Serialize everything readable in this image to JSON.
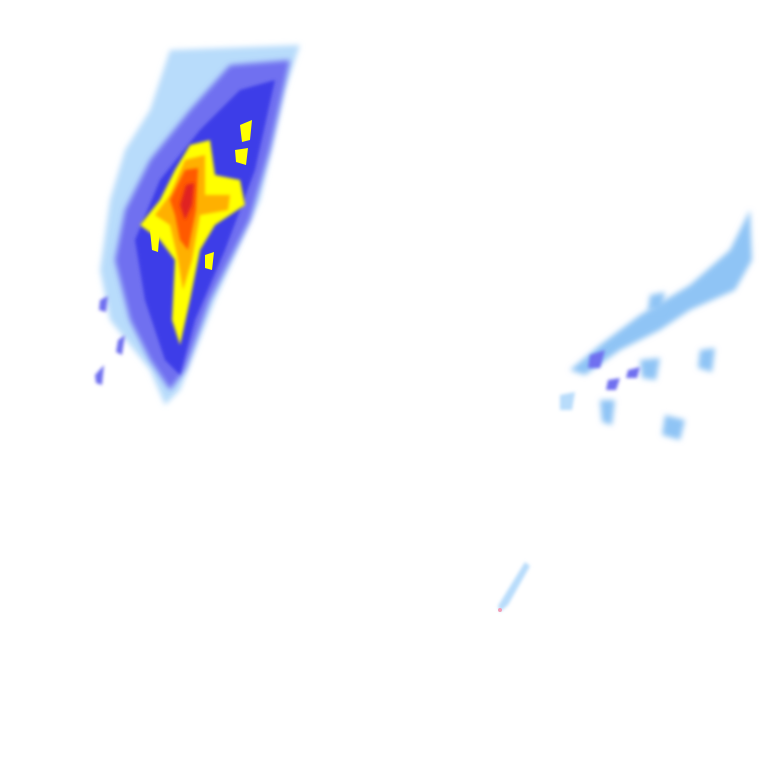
{
  "map": {
    "layer": "precipitation-radar",
    "background": "#ffffff",
    "intensity_colors": {
      "very_light": "#b8dcfb",
      "light": "#8fc4f5",
      "moderate_low": "#6f6ff0",
      "moderate": "#3c3ce8",
      "heavy_low": "#ffff00",
      "heavy": "#ffb000",
      "very_heavy": "#ff5a00",
      "extreme": "#e02020"
    }
  }
}
